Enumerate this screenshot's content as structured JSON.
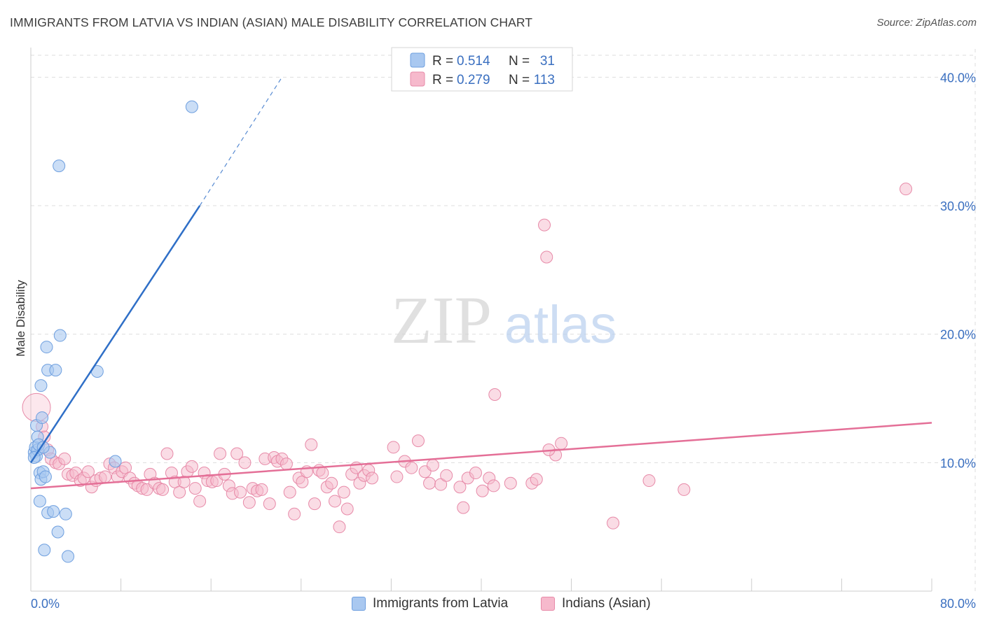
{
  "title": "IMMIGRANTS FROM LATVIA VS INDIAN (ASIAN) MALE DISABILITY CORRELATION CHART",
  "source": "Source: ZipAtlas.com",
  "watermark": {
    "zip": "ZIP",
    "atlas": "atlas"
  },
  "colors": {
    "blue_fill": "#a9c8f0",
    "blue_stroke": "#6e9fdf",
    "blue_line": "#2f6fc7",
    "pink_fill": "#f6b9cc",
    "pink_stroke": "#e78aa8",
    "pink_line": "#e46f97",
    "tick_label": "#3a6fc0",
    "grid": "#dddddd"
  },
  "legend": {
    "rows": [
      {
        "r_label": "R =",
        "r_value": "0.514",
        "n_label": "N =",
        "n_value": "31"
      },
      {
        "r_label": "R =",
        "r_value": "0.279",
        "n_label": "N =",
        "n_value": "113"
      }
    ]
  },
  "chart_data": {
    "type": "scatter",
    "ylabel": "Male Disability",
    "xlim": [
      0,
      80
    ],
    "ylim": [
      0,
      42.2
    ],
    "x_tick_labels": [
      "0.0%",
      "80.0%"
    ],
    "y_ticks": [
      10,
      20,
      30,
      40
    ],
    "y_tick_labels": [
      "10.0%",
      "20.0%",
      "30.0%",
      "40.0%"
    ],
    "grid": true,
    "series": [
      {
        "name": "Immigrants from Latvia",
        "color": "#a9c8f0",
        "trend": {
          "x": [
            0,
            15
          ],
          "y": [
            10.0,
            30.0
          ],
          "dash_to": [
            22.3,
            40.0
          ]
        },
        "points": [
          [
            0.3,
            10.8
          ],
          [
            0.4,
            11.2
          ],
          [
            0.5,
            10.5
          ],
          [
            0.6,
            11.0
          ],
          [
            0.5,
            12.9
          ],
          [
            0.6,
            12.0
          ],
          [
            0.7,
            11.4
          ],
          [
            0.8,
            9.2
          ],
          [
            0.9,
            16.0
          ],
          [
            1.0,
            13.5
          ],
          [
            0.9,
            8.7
          ],
          [
            1.1,
            9.3
          ],
          [
            1.2,
            3.2
          ],
          [
            1.3,
            8.9
          ],
          [
            1.4,
            19.0
          ],
          [
            1.5,
            17.2
          ],
          [
            1.5,
            6.1
          ],
          [
            1.7,
            10.8
          ],
          [
            2.0,
            6.2
          ],
          [
            2.2,
            17.2
          ],
          [
            2.4,
            4.6
          ],
          [
            2.5,
            33.1
          ],
          [
            2.6,
            19.9
          ],
          [
            3.1,
            6.0
          ],
          [
            3.3,
            2.7
          ],
          [
            5.9,
            17.1
          ],
          [
            7.5,
            10.1
          ],
          [
            14.3,
            37.7
          ],
          [
            0.8,
            7.0
          ],
          [
            0.3,
            10.4
          ],
          [
            1.1,
            11.2
          ]
        ]
      },
      {
        "name": "Indians (Asian)",
        "color": "#f6b9cc",
        "trend": {
          "x": [
            0,
            80
          ],
          "y": [
            8.0,
            13.1
          ]
        },
        "points": [
          [
            0.5,
            14.3
          ],
          [
            1.0,
            12.8
          ],
          [
            1.2,
            12.0
          ],
          [
            1.5,
            11.0
          ],
          [
            1.8,
            10.3
          ],
          [
            2.2,
            10.0
          ],
          [
            2.5,
            9.9
          ],
          [
            3.0,
            10.3
          ],
          [
            3.3,
            9.1
          ],
          [
            3.7,
            9.0
          ],
          [
            4.0,
            9.2
          ],
          [
            4.4,
            8.6
          ],
          [
            4.7,
            8.8
          ],
          [
            5.1,
            9.3
          ],
          [
            5.4,
            8.1
          ],
          [
            5.8,
            8.6
          ],
          [
            6.2,
            8.8
          ],
          [
            6.6,
            8.9
          ],
          [
            7.0,
            9.9
          ],
          [
            7.4,
            9.6
          ],
          [
            7.7,
            8.9
          ],
          [
            8.1,
            9.3
          ],
          [
            8.4,
            9.6
          ],
          [
            8.8,
            8.8
          ],
          [
            9.2,
            8.4
          ],
          [
            9.5,
            8.2
          ],
          [
            9.9,
            8.0
          ],
          [
            10.3,
            7.9
          ],
          [
            10.6,
            9.1
          ],
          [
            11.0,
            8.4
          ],
          [
            11.4,
            8.0
          ],
          [
            11.7,
            7.9
          ],
          [
            12.1,
            10.7
          ],
          [
            12.5,
            9.2
          ],
          [
            12.8,
            8.5
          ],
          [
            13.2,
            7.7
          ],
          [
            13.6,
            8.5
          ],
          [
            13.9,
            9.3
          ],
          [
            14.3,
            9.7
          ],
          [
            14.6,
            8.0
          ],
          [
            15.0,
            7.0
          ],
          [
            15.4,
            9.2
          ],
          [
            15.7,
            8.6
          ],
          [
            16.1,
            8.5
          ],
          [
            16.5,
            8.6
          ],
          [
            16.8,
            10.7
          ],
          [
            17.2,
            9.1
          ],
          [
            17.6,
            8.2
          ],
          [
            17.9,
            7.6
          ],
          [
            18.3,
            10.7
          ],
          [
            18.6,
            7.7
          ],
          [
            19.0,
            10.0
          ],
          [
            19.4,
            6.9
          ],
          [
            19.7,
            8.0
          ],
          [
            20.1,
            7.8
          ],
          [
            20.5,
            7.9
          ],
          [
            20.8,
            10.3
          ],
          [
            21.2,
            6.8
          ],
          [
            21.6,
            10.4
          ],
          [
            21.9,
            10.1
          ],
          [
            22.3,
            10.3
          ],
          [
            22.7,
            9.9
          ],
          [
            23.0,
            7.7
          ],
          [
            23.4,
            6.0
          ],
          [
            23.8,
            8.8
          ],
          [
            24.1,
            8.5
          ],
          [
            24.5,
            9.3
          ],
          [
            24.9,
            11.4
          ],
          [
            25.2,
            6.8
          ],
          [
            25.6,
            9.4
          ],
          [
            25.9,
            9.2
          ],
          [
            26.3,
            8.1
          ],
          [
            26.7,
            8.4
          ],
          [
            27.0,
            7.0
          ],
          [
            27.4,
            5.0
          ],
          [
            27.8,
            7.7
          ],
          [
            28.1,
            6.4
          ],
          [
            28.5,
            9.1
          ],
          [
            28.9,
            9.6
          ],
          [
            29.2,
            8.4
          ],
          [
            29.6,
            9.0
          ],
          [
            30.0,
            9.4
          ],
          [
            30.3,
            8.8
          ],
          [
            32.2,
            11.2
          ],
          [
            32.5,
            8.9
          ],
          [
            33.2,
            10.1
          ],
          [
            33.8,
            9.6
          ],
          [
            34.4,
            11.7
          ],
          [
            35.0,
            9.3
          ],
          [
            35.4,
            8.4
          ],
          [
            35.7,
            9.8
          ],
          [
            36.4,
            8.3
          ],
          [
            36.9,
            9.0
          ],
          [
            38.1,
            8.1
          ],
          [
            38.4,
            6.5
          ],
          [
            38.8,
            8.8
          ],
          [
            40.1,
            7.8
          ],
          [
            40.7,
            8.8
          ],
          [
            41.1,
            8.2
          ],
          [
            41.2,
            15.3
          ],
          [
            42.6,
            8.4
          ],
          [
            44.5,
            8.4
          ],
          [
            44.9,
            8.7
          ],
          [
            46.6,
            10.6
          ],
          [
            47.1,
            11.5
          ],
          [
            51.7,
            5.3
          ],
          [
            54.9,
            8.6
          ],
          [
            58.0,
            7.9
          ],
          [
            77.7,
            31.3
          ],
          [
            46.0,
            11.0
          ],
          [
            45.8,
            26.0
          ],
          [
            45.6,
            28.5
          ],
          [
            39.5,
            9.2
          ]
        ]
      }
    ]
  }
}
